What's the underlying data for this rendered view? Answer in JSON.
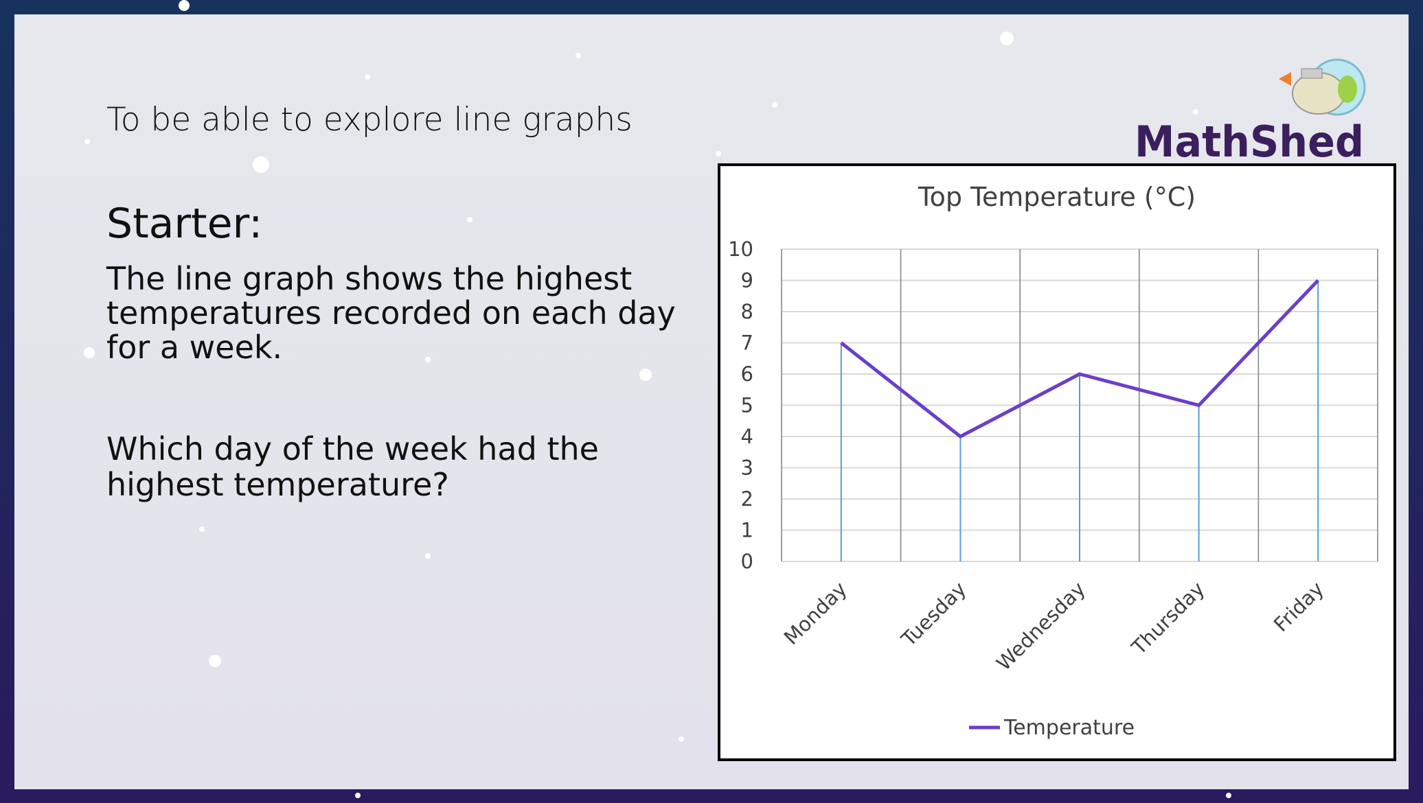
{
  "objective": "To be able to explore line graphs",
  "starter_heading": "Starter:",
  "intro_lines": [
    "The line graph shows the highest",
    "temperatures recorded on each day",
    "for a week."
  ],
  "question_lines": [
    "Which day of the week had the",
    "highest temperature?"
  ],
  "logo": "MathShed",
  "chart_data": {
    "type": "line",
    "title": "Top Temperature (°C)",
    "categories": [
      "Monday",
      "Tuesday",
      "Wednesday",
      "Thursday",
      "Friday"
    ],
    "series": [
      {
        "name": "Temperature",
        "color": "#6a3fc9",
        "values": [
          7,
          4,
          6,
          5,
          9
        ]
      }
    ],
    "ylim": [
      0,
      10
    ],
    "yticks": [
      0,
      1,
      2,
      3,
      4,
      5,
      6,
      7,
      8,
      9,
      10
    ],
    "grid": true,
    "drop_lines": true,
    "drop_line_color": "#5b9bd5",
    "legend": "bottom"
  }
}
